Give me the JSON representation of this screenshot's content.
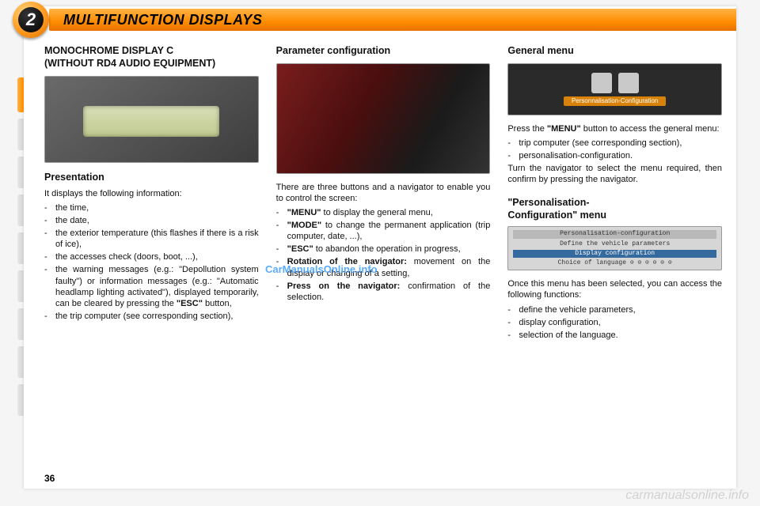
{
  "header": {
    "chapter_number": "2",
    "title": "MULTIFUNCTION DISPLAYS"
  },
  "page_number": "36",
  "watermark_center": "CarManualsOnline.info",
  "watermark_footer": "carmanualsonline.info",
  "col1": {
    "heading1": "MONOCHROME DISPLAY C",
    "heading2": "(WITHOUT RD4 AUDIO EQUIPMENT)",
    "section_title": "Presentation",
    "intro": "It displays the following information:",
    "items": [
      "the time,",
      "the date,",
      "the exterior temperature (this ﬂashes if there is a risk of ice),",
      "the accesses check (doors, boot, ...),",
      "the warning messages (e.g.: \"Depollution system faulty\") or information messages (e.g.: \"Automatic headlamp lighting activated\"), displayed temporarily, can be cleared by pressing the <b>\"ESC\"</b> button,",
      "the trip computer (see corresponding section),"
    ]
  },
  "col2": {
    "heading": "Parameter conﬁguration",
    "intro": "There are three buttons and a navigator to enable you to control the screen:",
    "items": [
      "<b>\"MENU\"</b> to display the general menu,",
      "<b>\"MODE\"</b> to change the permanent application (trip computer, date, ...),",
      "<b>\"ESC\"</b> to abandon the operation in progress,",
      "<b>Rotation of the navigator:</b> movement on the display or changing of a setting,",
      "<b>Press on the navigator:</b> conﬁrmation of the selection."
    ]
  },
  "col3": {
    "heading1": "General menu",
    "panel_strip": "Personnalisation-Configuration",
    "p1_pre": "Press the ",
    "p1_bold": "\"MENU\"",
    "p1_post": " button to access the general menu:",
    "list1": [
      "trip computer (see corresponding section),",
      "personalisation-conﬁguration."
    ],
    "p2": "Turn the navigator to select the menu required, then conﬁrm by pressing the navigator.",
    "heading2a": "\"Personalisation-",
    "heading2b": "Conﬁguration\" menu",
    "menu_lines": {
      "hdr": "Personalisation-configuration",
      "l1": "Define the vehicle parameters",
      "sel": "Display configuration",
      "l2": "Choice of language  ⊙ ⊙ ⊙  ⊙ ⊙ ⊙"
    },
    "p3": "Once this menu has been selected, you can access the following functions:",
    "list2": [
      "deﬁne the vehicle parameters,",
      "display conﬁguration,",
      "selection of the language."
    ]
  }
}
